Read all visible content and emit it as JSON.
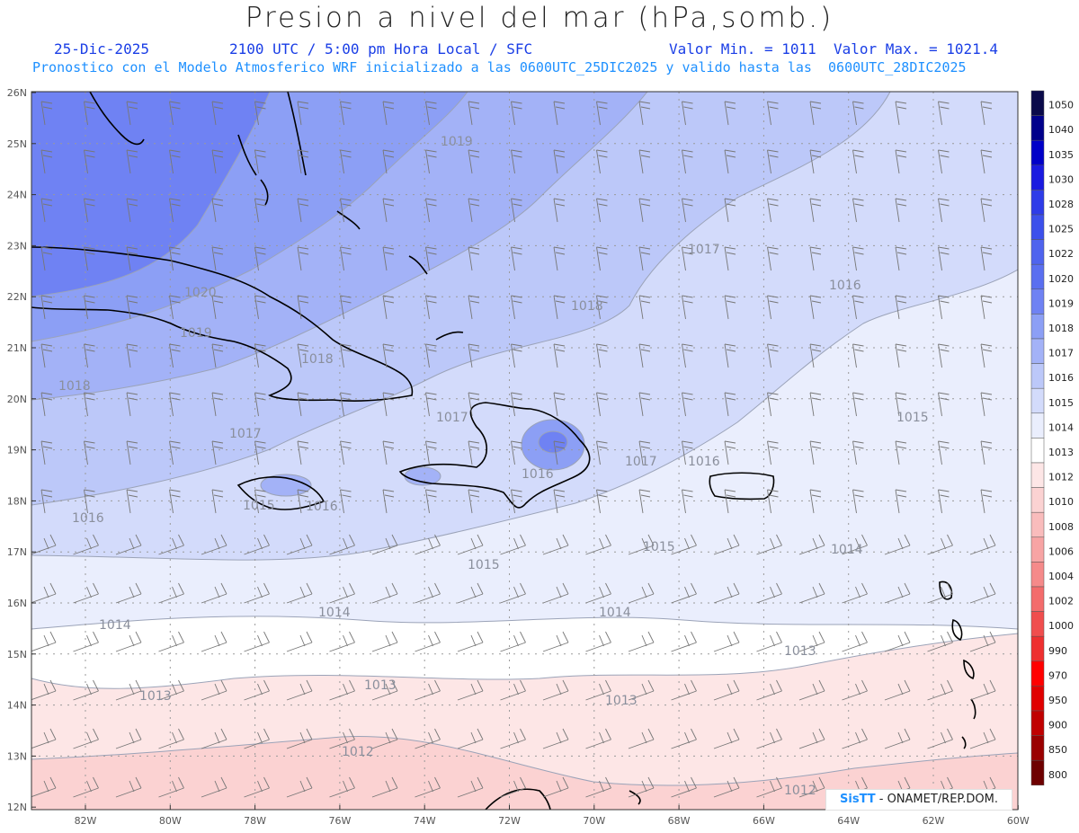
{
  "header": {
    "title": "Presion a nivel del mar (hPa,somb.)",
    "date": "25-Dic-2025",
    "time": "2100 UTC / 5:00 pm Hora Local / SFC",
    "min": "Valor Min. = 1011",
    "max": "Valor Max. = 1021.4",
    "model_line": "Pronostico con el Modelo Atmosferico WRF inicializado a las 0600UTC_25DIC2025 y valido hasta las  0600UTC_28DIC2025"
  },
  "map": {
    "lat_labels": [
      "26N",
      "25N",
      "24N",
      "23N",
      "22N",
      "21N",
      "20N",
      "19N",
      "18N",
      "17N",
      "16N",
      "15N",
      "14N",
      "13N",
      "12N"
    ],
    "lon_labels": [
      "82W",
      "80W",
      "78W",
      "76W",
      "74W",
      "72W",
      "70W",
      "68W",
      "66W",
      "64W",
      "62W",
      "60W"
    ],
    "contour_labels": [
      {
        "text": "1019"
      },
      {
        "text": "1017"
      },
      {
        "text": "1016"
      },
      {
        "text": "1018"
      },
      {
        "text": "1020"
      },
      {
        "text": "1019"
      },
      {
        "text": "1018"
      },
      {
        "text": "1018"
      },
      {
        "text": "1017"
      },
      {
        "text": "1017"
      },
      {
        "text": "1015"
      },
      {
        "text": "1016"
      },
      {
        "text": "1017"
      },
      {
        "text": "1016"
      },
      {
        "text": "1016"
      },
      {
        "text": "1015"
      },
      {
        "text": "1016"
      },
      {
        "text": "1015"
      },
      {
        "text": "1015"
      },
      {
        "text": "1014"
      },
      {
        "text": "1014"
      },
      {
        "text": "1014"
      },
      {
        "text": "1014"
      },
      {
        "text": "1013"
      },
      {
        "text": "1013"
      },
      {
        "text": "1013"
      },
      {
        "text": "1013"
      },
      {
        "text": "1012"
      },
      {
        "text": "1012"
      }
    ]
  },
  "legend": {
    "levels": [
      "1050",
      "1040",
      "1035",
      "1030",
      "1028",
      "1025",
      "1022",
      "1020",
      "1019",
      "1018",
      "1017",
      "1016",
      "1015",
      "1014",
      "1013",
      "1012",
      "1010",
      "1008",
      "1006",
      "1004",
      "1002",
      "1000",
      "990",
      "970",
      "950",
      "900",
      "850",
      "800"
    ],
    "colors": [
      "#0a0a4a",
      "#00008b",
      "#0000c8",
      "#1a1ae0",
      "#2e3ce8",
      "#3c50eb",
      "#4f64ee",
      "#5a6ff0",
      "#6f82f3",
      "#8c9ff5",
      "#a3b2f7",
      "#bcc8f9",
      "#d3dbfb",
      "#eaeefd",
      "#ffffff",
      "#fde6e6",
      "#fbd2d2",
      "#f9bcbc",
      "#f7a4a4",
      "#f58a8a",
      "#f36c6c",
      "#f04e4e",
      "#ee3030",
      "#ff0000",
      "#e00000",
      "#c00000",
      "#9a0000",
      "#6e0000"
    ]
  },
  "credit": {
    "brand": "SisTT",
    "rest": " - ONAMET/REP.DOM."
  }
}
